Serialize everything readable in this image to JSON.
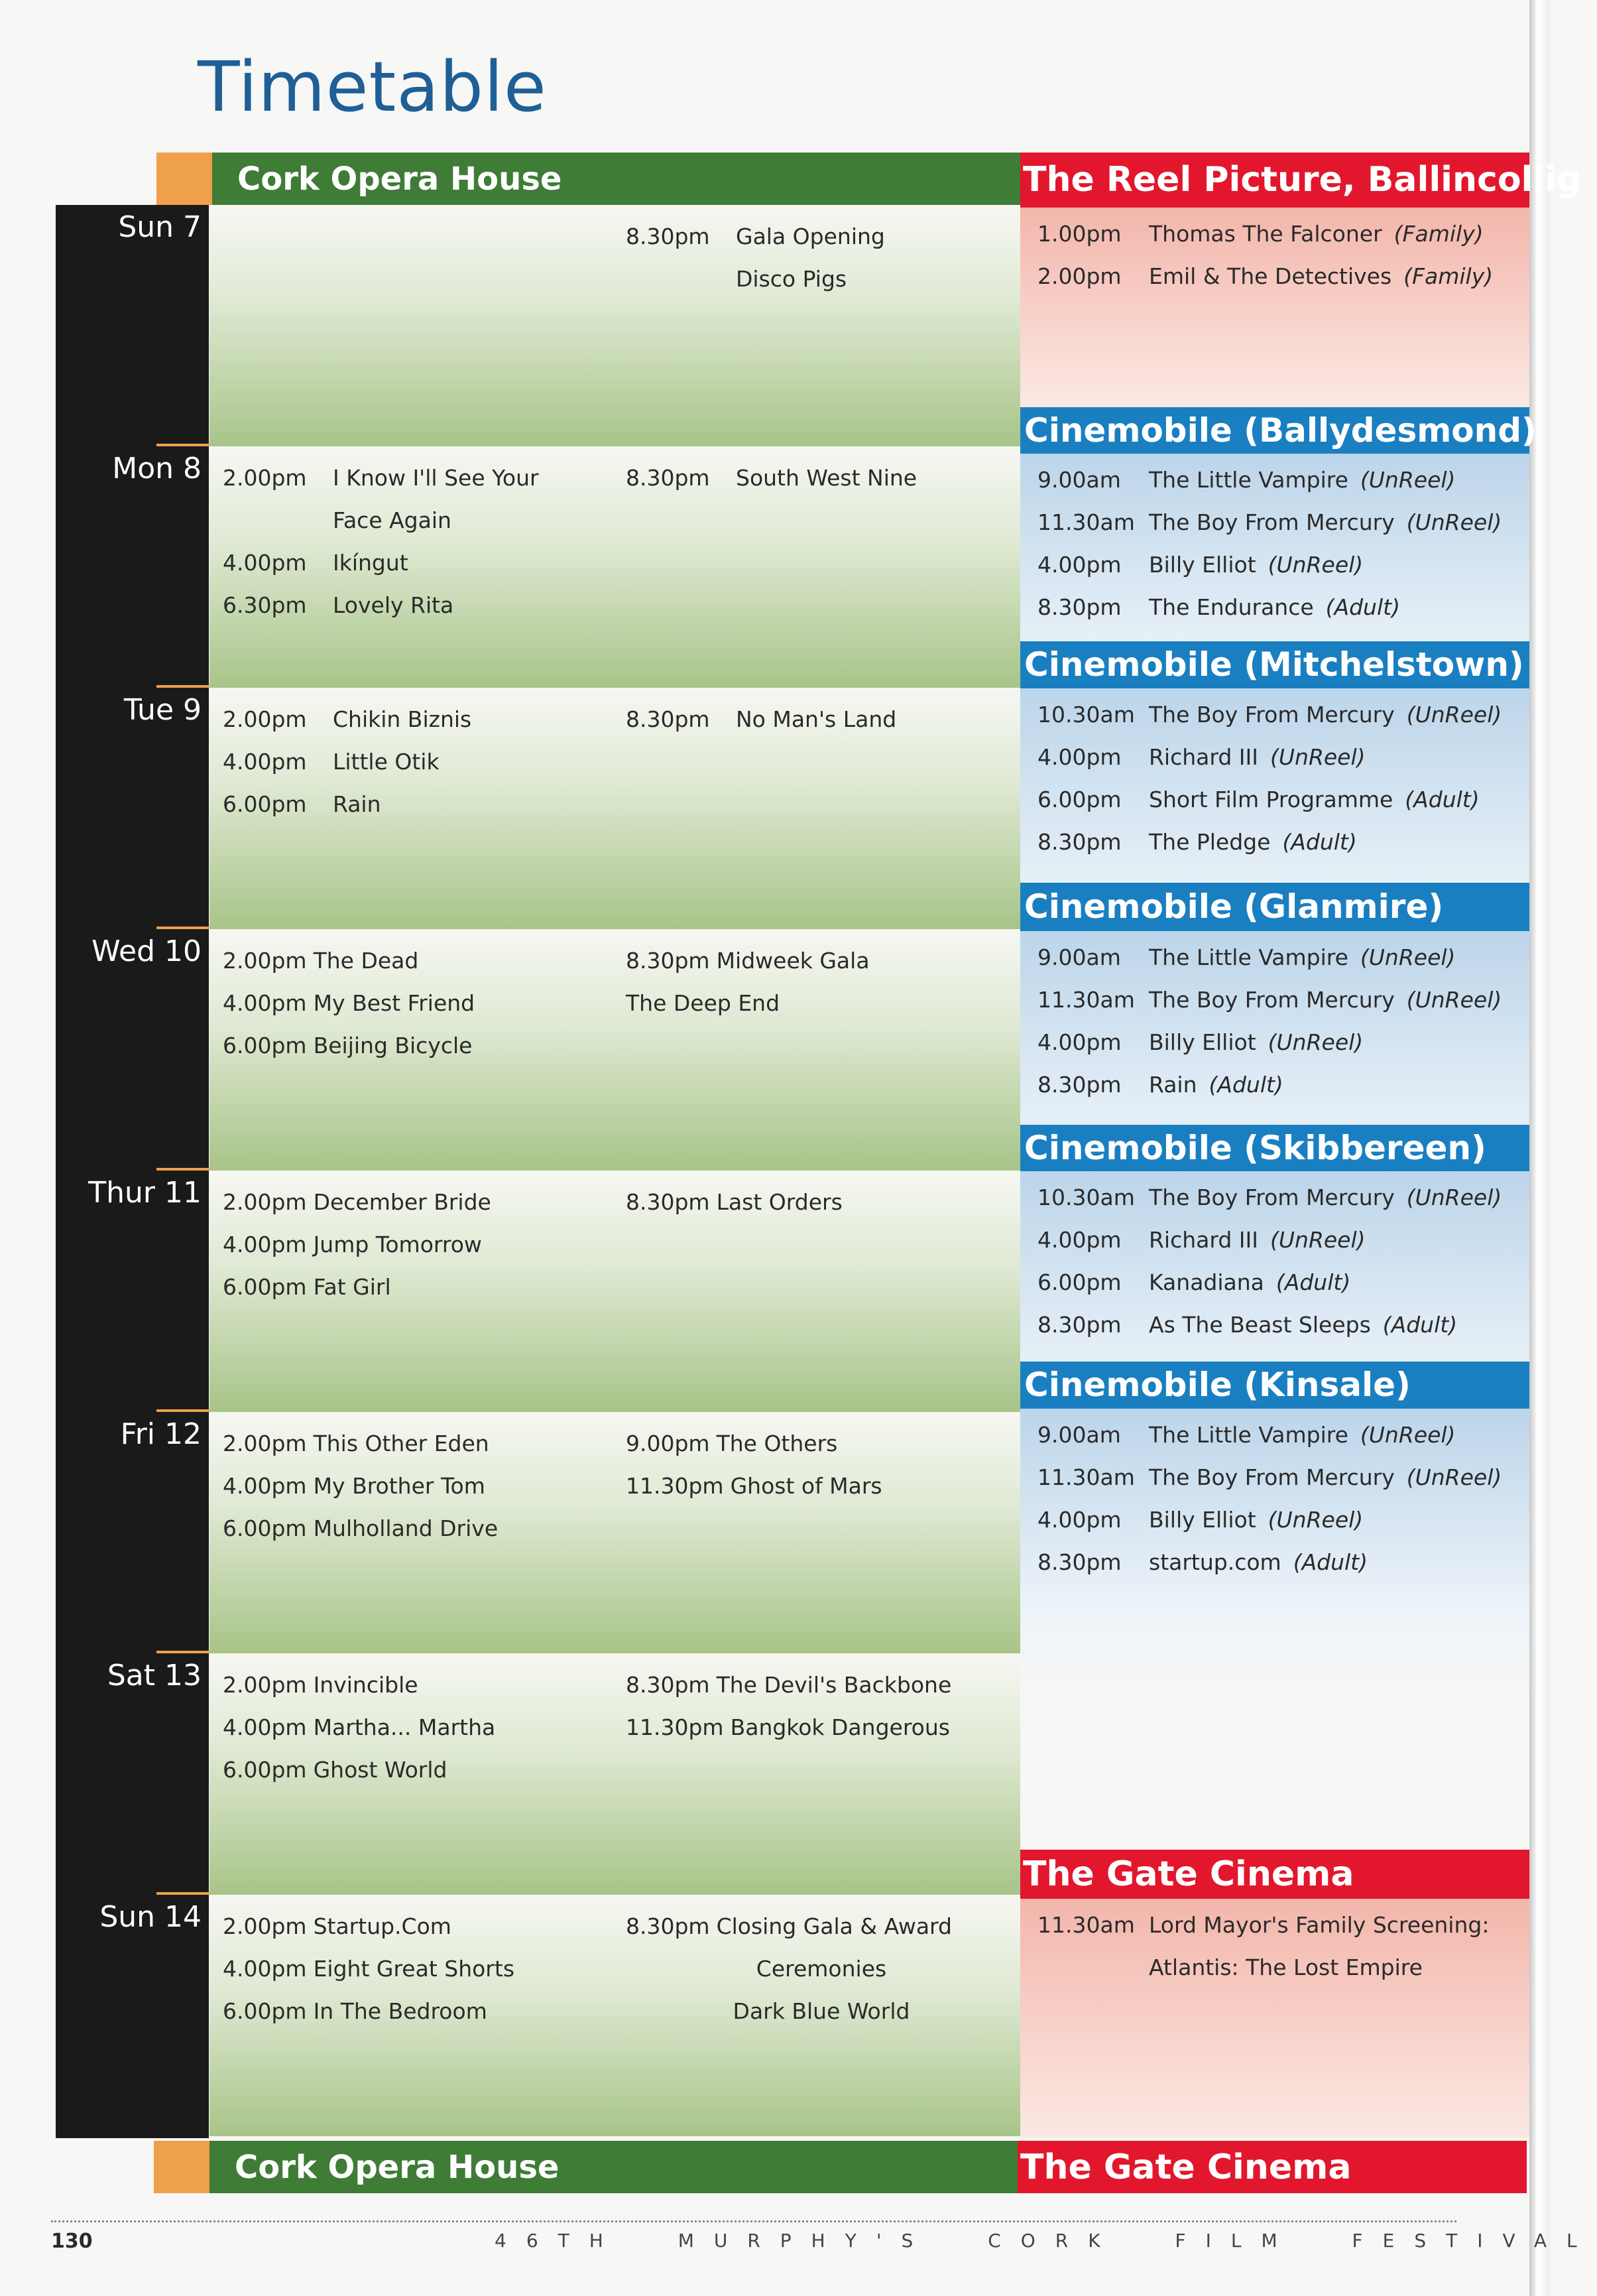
{
  "title": "Timetable",
  "venues": {
    "opera_house": "Cork Opera House",
    "gate_cinema": "The Gate Cinema"
  },
  "colors": {
    "green": "#3f7c36",
    "red": "#e2172d",
    "blue": "#1a7fc1",
    "orange": "#eea04a",
    "black": "#1b1a1b",
    "title": "#1f5f96"
  },
  "days": [
    {
      "label": "Sun 7",
      "mode": "columns",
      "left": [],
      "right": [
        {
          "time": "8.30pm",
          "title": "Gala Opening"
        },
        {
          "time": "",
          "title": "Disco Pigs"
        }
      ]
    },
    {
      "label": "Mon 8",
      "mode": "columns",
      "left": [
        {
          "time": "2.00pm",
          "title": "I Know I'll See Your Face Again"
        },
        {
          "time": "4.00pm",
          "title": "Ikíngut"
        },
        {
          "time": "6.30pm",
          "title": "Lovely Rita"
        }
      ],
      "right": [
        {
          "time": "8.30pm",
          "title": "South West Nine"
        }
      ]
    },
    {
      "label": "Tue 9",
      "mode": "columns",
      "left": [
        {
          "time": "2.00pm",
          "title": "Chikin Biznis"
        },
        {
          "time": "4.00pm",
          "title": "Little Otik"
        },
        {
          "time": "6.00pm",
          "title": "Rain"
        }
      ],
      "right": [
        {
          "time": "8.30pm",
          "title": "No Man's Land"
        }
      ]
    },
    {
      "label": "Wed 10",
      "mode": "inline",
      "left": [
        {
          "time": "2.00pm",
          "title": "The Dead"
        },
        {
          "time": "4.00pm",
          "title": "My Best Friend"
        },
        {
          "time": "6.00pm",
          "title": "Beijing Bicycle"
        }
      ],
      "right": [
        {
          "time": "8.30pm",
          "title": "Midweek Gala"
        },
        {
          "time": "",
          "title": "The Deep End"
        }
      ]
    },
    {
      "label": "Thur 11",
      "mode": "inline",
      "left": [
        {
          "time": "2.00pm",
          "title": "December Bride"
        },
        {
          "time": "4.00pm",
          "title": "Jump Tomorrow"
        },
        {
          "time": "6.00pm",
          "title": "Fat Girl"
        }
      ],
      "right": [
        {
          "time": "8.30pm",
          "title": "Last Orders"
        }
      ]
    },
    {
      "label": "Fri 12",
      "mode": "inline",
      "left": [
        {
          "time": "2.00pm",
          "title": "This Other Eden"
        },
        {
          "time": "4.00pm",
          "title": "My Brother Tom"
        },
        {
          "time": "6.00pm",
          "title": "Mulholland Drive"
        }
      ],
      "right": [
        {
          "time": "9.00pm",
          "title": "The Others"
        },
        {
          "time": "11.30pm",
          "title": "Ghost of Mars"
        }
      ]
    },
    {
      "label": "Sat 13",
      "mode": "inline",
      "left": [
        {
          "time": "2.00pm",
          "title": "Invincible"
        },
        {
          "time": "4.00pm",
          "title": "Martha... Martha"
        },
        {
          "time": "6.00pm",
          "title": "Ghost World"
        }
      ],
      "right": [
        {
          "time": "8.30pm",
          "title": "The Devil's Backbone"
        },
        {
          "time": "11.30pm",
          "title": "Bangkok Dangerous"
        }
      ]
    },
    {
      "label": "Sun 14",
      "mode": "inline",
      "left": [
        {
          "time": "2.00pm",
          "title": "Startup.Com"
        },
        {
          "time": "4.00pm",
          "title": "Eight Great Shorts"
        },
        {
          "time": "6.00pm",
          "title": "In The Bedroom"
        }
      ],
      "right": [
        {
          "time": "8.30pm",
          "title": "Closing Gala & Award"
        },
        {
          "time": "",
          "title": "Ceremonies",
          "align": "center"
        },
        {
          "time": "",
          "title": "Dark Blue World",
          "align": "center"
        }
      ]
    }
  ],
  "side_venues": [
    {
      "name": "The Reel Picture, Ballincollig",
      "color": "red",
      "screenings": [
        {
          "time": "1.00pm",
          "title": "Thomas The Falconer",
          "tag": "(Family)"
        },
        {
          "time": "2.00pm",
          "title": "Emil & The Detectives",
          "tag": "(Family)"
        }
      ]
    },
    {
      "name": "Cinemobile (Ballydesmond)",
      "color": "blue",
      "screenings": [
        {
          "time": "9.00am",
          "title": "The Little Vampire",
          "tag": "(UnReel)"
        },
        {
          "time": "11.30am",
          "title": "The Boy From Mercury",
          "tag": "(UnReel)"
        },
        {
          "time": "4.00pm",
          "title": "Billy Elliot",
          "tag": "(UnReel)"
        },
        {
          "time": "8.30pm",
          "title": "The Endurance",
          "tag": "(Adult)"
        }
      ]
    },
    {
      "name": "Cinemobile (Mitchelstown)",
      "color": "blue",
      "screenings": [
        {
          "time": "10.30am",
          "title": "The Boy From Mercury",
          "tag": "(UnReel)"
        },
        {
          "time": "4.00pm",
          "title": "Richard III",
          "tag": "(UnReel)"
        },
        {
          "time": "6.00pm",
          "title": "Short Film Programme",
          "tag": "(Adult)"
        },
        {
          "time": "8.30pm",
          "title": "The Pledge",
          "tag": "(Adult)"
        }
      ]
    },
    {
      "name": "Cinemobile (Glanmire)",
      "color": "blue",
      "screenings": [
        {
          "time": "9.00am",
          "title": "The Little Vampire",
          "tag": "(UnReel)"
        },
        {
          "time": "11.30am",
          "title": "The Boy From Mercury",
          "tag": "(UnReel)"
        },
        {
          "time": "4.00pm",
          "title": "Billy Elliot",
          "tag": "(UnReel)"
        },
        {
          "time": "8.30pm",
          "title": "Rain",
          "tag": "(Adult)"
        }
      ]
    },
    {
      "name": "Cinemobile (Skibbereen)",
      "color": "blue",
      "screenings": [
        {
          "time": "10.30am",
          "title": "The Boy From Mercury",
          "tag": "(UnReel)"
        },
        {
          "time": "4.00pm",
          "title": "Richard III",
          "tag": "(UnReel)"
        },
        {
          "time": "6.00pm",
          "title": "Kanadiana",
          "tag": "(Adult)"
        },
        {
          "time": "8.30pm",
          "title": "As The Beast Sleeps",
          "tag": "(Adult)"
        }
      ]
    },
    {
      "name": "Cinemobile (Kinsale)",
      "color": "blue",
      "screenings": [
        {
          "time": "9.00am",
          "title": "The Little Vampire",
          "tag": "(UnReel)"
        },
        {
          "time": "11.30am",
          "title": "The Boy From Mercury",
          "tag": "(UnReel)"
        },
        {
          "time": "4.00pm",
          "title": "Billy Elliot",
          "tag": "(UnReel)"
        },
        {
          "time": "8.30pm",
          "title": "startup.com",
          "tag": "(Adult)"
        }
      ]
    },
    {
      "name": "The Gate Cinema",
      "color": "red",
      "screenings": [
        {
          "time": "11.30am",
          "title": "Lord Mayor's Family Screening:",
          "tag": ""
        },
        {
          "time": "",
          "title": "Atlantis: The Lost Empire",
          "tag": ""
        }
      ]
    }
  ],
  "footer": {
    "page_number": "130",
    "festival": "46TH MURPHY'S CORK FILM FESTIVAL"
  }
}
